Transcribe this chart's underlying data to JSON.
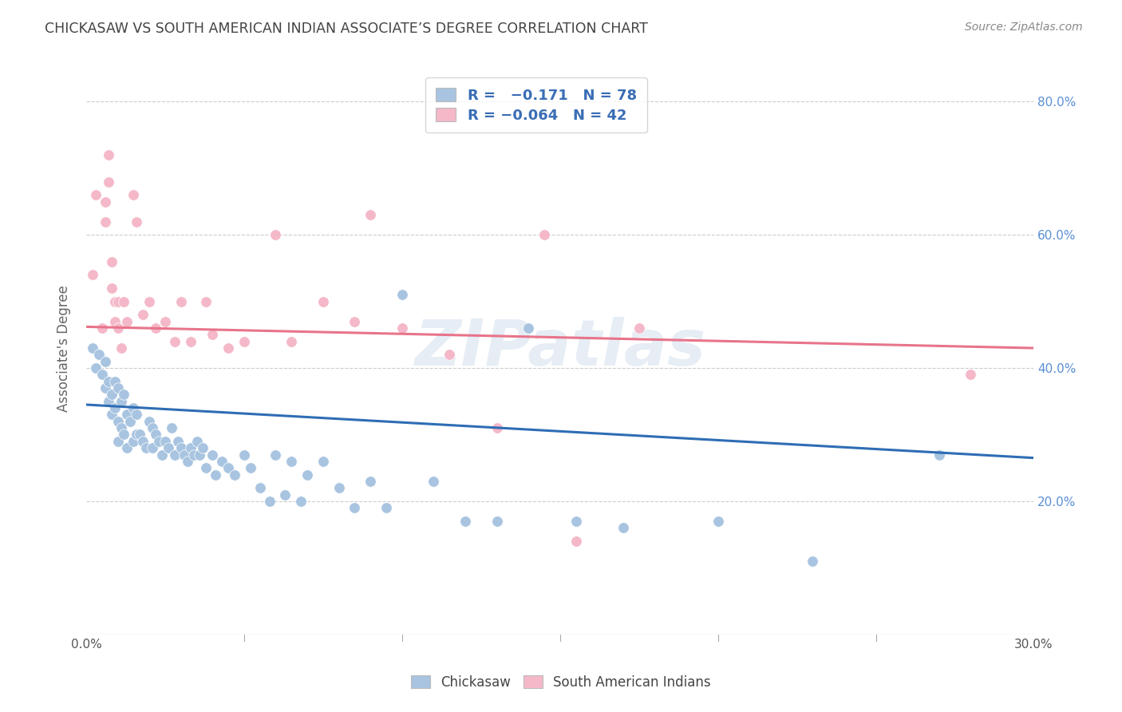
{
  "title": "CHICKASAW VS SOUTH AMERICAN INDIAN ASSOCIATE’S DEGREE CORRELATION CHART",
  "source": "Source: ZipAtlas.com",
  "ylabel": "Associate's Degree",
  "watermark": "ZIPatlas",
  "blue_color": "#a8c4e0",
  "pink_color": "#f4b8c8",
  "line_blue": "#2e6db4",
  "line_pink": "#e8748a",
  "title_color": "#444444",
  "source_color": "#888888",
  "legend_text_color": "#3a6db5",
  "ytick_color": "#5a8fd6",
  "xtick_color": "#555555",
  "grid_color": "#cccccc",
  "blue_x": [
    0.002,
    0.003,
    0.004,
    0.005,
    0.006,
    0.006,
    0.007,
    0.007,
    0.008,
    0.008,
    0.009,
    0.009,
    0.01,
    0.01,
    0.01,
    0.011,
    0.011,
    0.012,
    0.012,
    0.013,
    0.013,
    0.014,
    0.015,
    0.015,
    0.016,
    0.016,
    0.017,
    0.018,
    0.019,
    0.02,
    0.021,
    0.021,
    0.022,
    0.023,
    0.024,
    0.025,
    0.026,
    0.027,
    0.028,
    0.029,
    0.03,
    0.031,
    0.032,
    0.033,
    0.034,
    0.035,
    0.036,
    0.037,
    0.038,
    0.04,
    0.041,
    0.043,
    0.045,
    0.047,
    0.05,
    0.052,
    0.055,
    0.058,
    0.06,
    0.063,
    0.065,
    0.068,
    0.07,
    0.075,
    0.08,
    0.085,
    0.09,
    0.095,
    0.1,
    0.11,
    0.12,
    0.13,
    0.14,
    0.155,
    0.17,
    0.2,
    0.23,
    0.27
  ],
  "blue_y": [
    0.43,
    0.4,
    0.42,
    0.39,
    0.41,
    0.37,
    0.38,
    0.35,
    0.36,
    0.33,
    0.38,
    0.34,
    0.37,
    0.32,
    0.29,
    0.35,
    0.31,
    0.36,
    0.3,
    0.33,
    0.28,
    0.32,
    0.34,
    0.29,
    0.33,
    0.3,
    0.3,
    0.29,
    0.28,
    0.32,
    0.31,
    0.28,
    0.3,
    0.29,
    0.27,
    0.29,
    0.28,
    0.31,
    0.27,
    0.29,
    0.28,
    0.27,
    0.26,
    0.28,
    0.27,
    0.29,
    0.27,
    0.28,
    0.25,
    0.27,
    0.24,
    0.26,
    0.25,
    0.24,
    0.27,
    0.25,
    0.22,
    0.2,
    0.27,
    0.21,
    0.26,
    0.2,
    0.24,
    0.26,
    0.22,
    0.19,
    0.23,
    0.19,
    0.51,
    0.23,
    0.17,
    0.17,
    0.46,
    0.17,
    0.16,
    0.17,
    0.11,
    0.27
  ],
  "pink_x": [
    0.002,
    0.003,
    0.005,
    0.006,
    0.006,
    0.007,
    0.007,
    0.008,
    0.008,
    0.009,
    0.009,
    0.01,
    0.01,
    0.011,
    0.012,
    0.013,
    0.015,
    0.016,
    0.018,
    0.02,
    0.022,
    0.025,
    0.028,
    0.03,
    0.033,
    0.038,
    0.04,
    0.045,
    0.05,
    0.06,
    0.065,
    0.075,
    0.085,
    0.09,
    0.1,
    0.115,
    0.13,
    0.145,
    0.155,
    0.175,
    0.28
  ],
  "pink_y": [
    0.54,
    0.66,
    0.46,
    0.65,
    0.62,
    0.72,
    0.68,
    0.56,
    0.52,
    0.5,
    0.47,
    0.5,
    0.46,
    0.43,
    0.5,
    0.47,
    0.66,
    0.62,
    0.48,
    0.5,
    0.46,
    0.47,
    0.44,
    0.5,
    0.44,
    0.5,
    0.45,
    0.43,
    0.44,
    0.6,
    0.44,
    0.5,
    0.47,
    0.63,
    0.46,
    0.42,
    0.31,
    0.6,
    0.14,
    0.46,
    0.39
  ],
  "blue_trend_x": [
    0.0,
    0.3
  ],
  "blue_trend_y": [
    0.345,
    0.265
  ],
  "pink_trend_x": [
    0.0,
    0.3
  ],
  "pink_trend_y": [
    0.462,
    0.43
  ],
  "xlim": [
    0.0,
    0.3
  ],
  "ylim": [
    0.0,
    0.86
  ],
  "xticks": [
    0.0,
    0.05,
    0.1,
    0.15,
    0.2,
    0.25,
    0.3
  ],
  "yticks": [
    0.0,
    0.2,
    0.4,
    0.6,
    0.8
  ]
}
